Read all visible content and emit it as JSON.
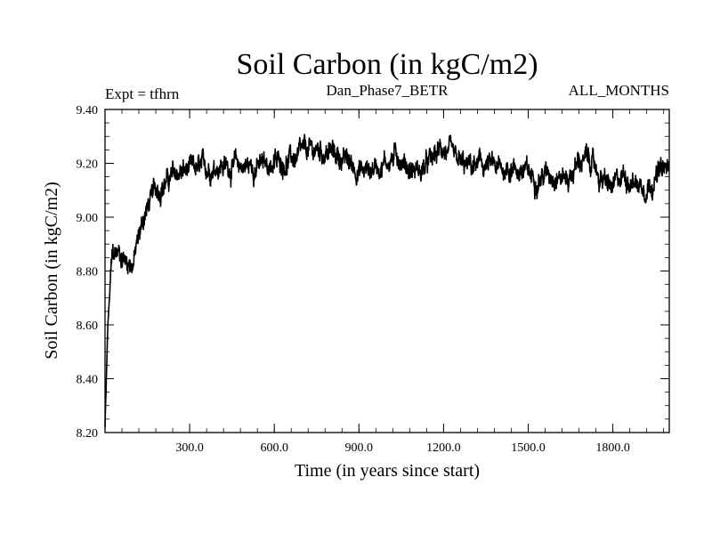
{
  "chart_data": {
    "type": "line",
    "title": "Soil Carbon (in kgC/m2)",
    "subtitle_left": "Expt = tfhrn",
    "subtitle_center": "Dan_Phase7_BETR",
    "subtitle_right": "ALL_MONTHS",
    "xlabel": "Time (in years since start)",
    "ylabel": "Soil Carbon (in kgC/m2)",
    "xlim": [
      0,
      2000
    ],
    "ylim": [
      8.2,
      9.4
    ],
    "x_ticks": [
      300,
      600,
      900,
      1200,
      1500,
      1800
    ],
    "x_tick_labels": [
      "300.0",
      "600.0",
      "900.0",
      "1200.0",
      "1500.0",
      "1800.0"
    ],
    "y_ticks": [
      8.2,
      8.4,
      8.6,
      8.8,
      9.0,
      9.2,
      9.4
    ],
    "y_tick_labels": [
      "8.20",
      "8.40",
      "8.60",
      "8.80",
      "9.00",
      "9.20",
      "9.40"
    ],
    "series": [
      {
        "name": "Soil Carbon",
        "color": "#000000",
        "x": [
          0,
          10,
          25,
          50,
          75,
          100,
          110,
          125,
          140,
          160,
          180,
          200,
          240,
          280,
          320,
          360,
          400,
          440,
          480,
          520,
          560,
          600,
          640,
          680,
          720,
          760,
          800,
          840,
          880,
          920,
          960,
          1000,
          1040,
          1080,
          1120,
          1160,
          1200,
          1240,
          1280,
          1320,
          1360,
          1400,
          1440,
          1480,
          1520,
          1560,
          1600,
          1640,
          1680,
          1720,
          1760,
          1800,
          1840,
          1880,
          1920,
          1960,
          2000
        ],
        "values": [
          8.22,
          8.6,
          8.85,
          8.87,
          8.84,
          8.83,
          8.88,
          8.95,
          9.01,
          9.06,
          9.1,
          9.12,
          9.15,
          9.17,
          9.17,
          9.18,
          9.2,
          9.19,
          9.19,
          9.19,
          9.19,
          9.2,
          9.21,
          9.22,
          9.24,
          9.25,
          9.24,
          9.22,
          9.19,
          9.17,
          9.19,
          9.21,
          9.23,
          9.18,
          9.17,
          9.21,
          9.26,
          9.2,
          9.18,
          9.19,
          9.19,
          9.17,
          9.19,
          9.17,
          9.15,
          9.16,
          9.17,
          9.14,
          9.21,
          9.21,
          9.14,
          9.1,
          9.16,
          9.13,
          9.12,
          9.16,
          9.18
        ]
      }
    ]
  }
}
